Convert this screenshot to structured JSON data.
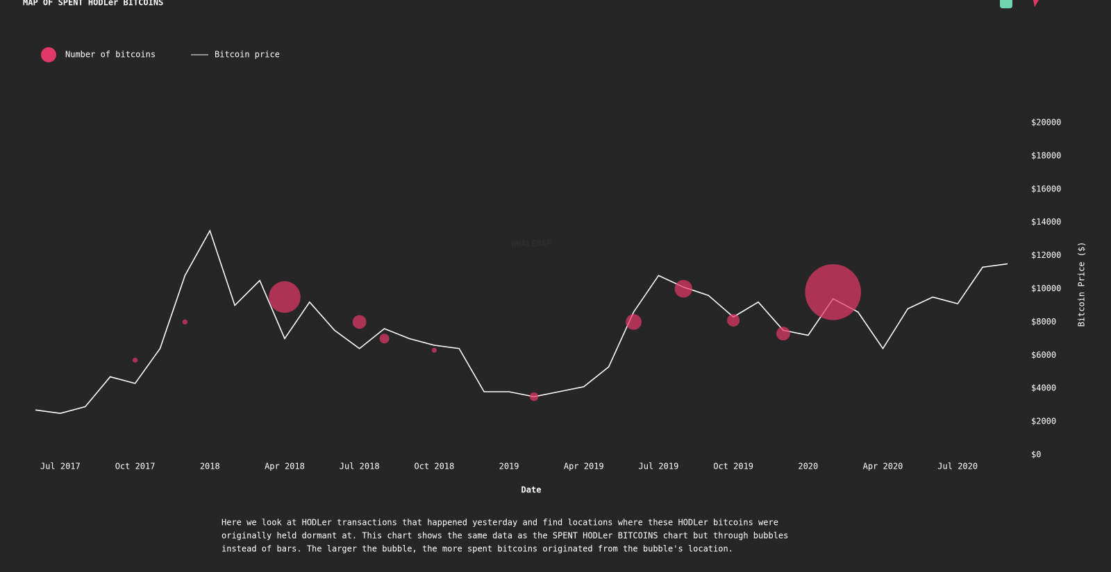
{
  "chart_data": {
    "type": "bubble-line",
    "title": "MAP OF SPENT HODLer BITCOINS",
    "watermark": "WHALEMAP",
    "x_label": "Date",
    "y_label": "Bitcoin Price ($)",
    "xlim": [
      "2017-06",
      "2020-09"
    ],
    "xticks": [
      {
        "value": "2017-07",
        "label": "Jul 2017"
      },
      {
        "value": "2017-10",
        "label": "Oct 2017"
      },
      {
        "value": "2018-01",
        "label": "2018"
      },
      {
        "value": "2018-04",
        "label": "Apr 2018"
      },
      {
        "value": "2018-07",
        "label": "Jul 2018"
      },
      {
        "value": "2018-10",
        "label": "Oct 2018"
      },
      {
        "value": "2019-01",
        "label": "2019"
      },
      {
        "value": "2019-04",
        "label": "Apr 2019"
      },
      {
        "value": "2019-07",
        "label": "Jul 2019"
      },
      {
        "value": "2019-10",
        "label": "Oct 2019"
      },
      {
        "value": "2020-01",
        "label": "2020"
      },
      {
        "value": "2020-04",
        "label": "Apr 2020"
      },
      {
        "value": "2020-07",
        "label": "Jul 2020"
      }
    ],
    "ylim": [
      0,
      20000
    ],
    "yticks": [
      {
        "value": 0,
        "label": "$0"
      },
      {
        "value": 2000,
        "label": "$2000"
      },
      {
        "value": 4000,
        "label": "$4000"
      },
      {
        "value": 6000,
        "label": "$6000"
      },
      {
        "value": 8000,
        "label": "$8000"
      },
      {
        "value": 10000,
        "label": "$10000"
      },
      {
        "value": 12000,
        "label": "$12000"
      },
      {
        "value": 14000,
        "label": "$14000"
      },
      {
        "value": 16000,
        "label": "$16000"
      },
      {
        "value": 18000,
        "label": "$18000"
      },
      {
        "value": 20000,
        "label": "$20000"
      }
    ],
    "series": [
      {
        "name": "Number of bitcoins",
        "kind": "bubble",
        "color": "#e0386a",
        "x": [
          "2017-10",
          "2017-12",
          "2018-04",
          "2018-07",
          "2018-08",
          "2018-10",
          "2019-02",
          "2019-06",
          "2019-08",
          "2019-10",
          "2019-12",
          "2020-02"
        ],
        "values": [
          5700,
          8000,
          9500,
          8000,
          7000,
          6300,
          3500,
          8000,
          10000,
          8100,
          7300,
          9800
        ],
        "sizes": [
          40,
          40,
          1600,
          300,
          150,
          40,
          120,
          400,
          500,
          250,
          300,
          5000
        ]
      },
      {
        "name": "Bitcoin price",
        "kind": "line",
        "color": "#ffffff",
        "x": [
          "2017-06",
          "2017-07",
          "2017-08",
          "2017-09",
          "2017-10",
          "2017-11",
          "2017-12",
          "2018-01",
          "2018-02",
          "2018-03",
          "2018-04",
          "2018-05",
          "2018-06",
          "2018-07",
          "2018-08",
          "2018-09",
          "2018-10",
          "2018-11",
          "2018-12",
          "2019-01",
          "2019-02",
          "2019-03",
          "2019-04",
          "2019-05",
          "2019-06",
          "2019-07",
          "2019-08",
          "2019-09",
          "2019-10",
          "2019-11",
          "2019-12",
          "2020-01",
          "2020-02",
          "2020-03",
          "2020-04",
          "2020-05",
          "2020-06",
          "2020-07",
          "2020-08",
          "2020-09"
        ],
        "values": [
          2700,
          2500,
          2900,
          4700,
          4300,
          6400,
          10800,
          13500,
          9000,
          10500,
          7000,
          9200,
          7500,
          6400,
          7600,
          7000,
          6600,
          6400,
          3800,
          3800,
          3500,
          3800,
          4100,
          5300,
          8600,
          10800,
          10100,
          9600,
          8300,
          9200,
          7500,
          7200,
          9400,
          8600,
          6400,
          8800,
          9500,
          9100,
          11300,
          11500
        ]
      }
    ],
    "description": [
      "Here we look at HODLer transactions that happened yesterday and find locations where these HODLer bitcoins were",
      "originally held dormant at. This chart shows the same data as the SPENT HODLer BITCOINS chart but through bubbles",
      "instead of bars. The larger the bubble, the more spent bitcoins originated from the bubble's location."
    ]
  }
}
